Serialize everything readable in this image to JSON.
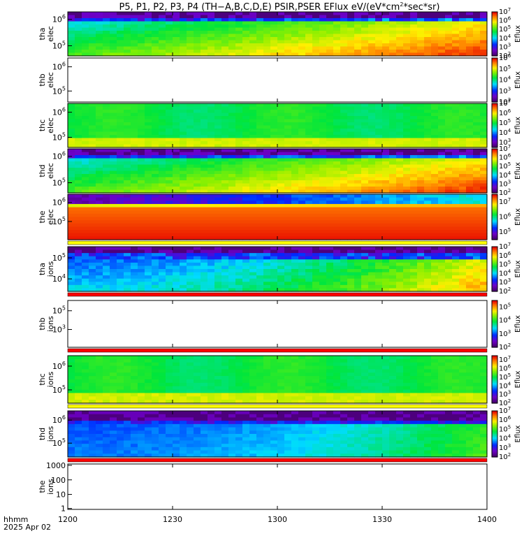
{
  "chart_data": {
    "type": "heatmap",
    "title": "P5, P1, P2, P3, P4 (TH−A,B,C,D,E) PSIR,PSER EFlux eV/(eV*cm",
    "title_sup": "2",
    "title_end": "*sec*sr)",
    "x_axis": {
      "ticks": [
        "1200",
        "1230",
        "1300",
        "1330",
        "1400"
      ],
      "ticks_minutes": [
        0,
        30,
        60,
        90,
        120
      ],
      "range_minutes": [
        0,
        120
      ],
      "label_line1": "hhmm",
      "label_line2": "2025 Apr 02"
    },
    "colorbar_label": "Eflux",
    "colors": {
      "red_flag": "#ff0000",
      "yellow_flag": "#ffff00",
      "empty": "#ffffff"
    },
    "panels": [
      {
        "id": "tha-elec",
        "ylabel": [
          "tha",
          "elec"
        ],
        "yticks": [
          {
            "base": "10",
            "exp": "6"
          },
          {
            "base": "10",
            "exp": "5"
          }
        ],
        "ytick_frac": [
          0.17,
          0.77
        ],
        "cb_ticks": [
          {
            "base": "10",
            "exp": "7"
          },
          {
            "base": "10",
            "exp": "6"
          },
          {
            "base": "10",
            "exp": "5"
          },
          {
            "base": "10",
            "exp": "4"
          },
          {
            "base": "10",
            "exp": "3"
          },
          {
            "base": "10",
            "exp": "2"
          }
        ],
        "cb_range": [
          2,
          7
        ],
        "pattern": "elec_grow",
        "level": 4.6,
        "bar": "none"
      },
      {
        "id": "thb-elec",
        "ylabel": [
          "thb",
          "elec"
        ],
        "yticks": [
          {
            "base": "10",
            "exp": "6"
          },
          {
            "base": "10",
            "exp": "5"
          }
        ],
        "ytick_frac": [
          0.2,
          0.75
        ],
        "cb_ticks": [
          {
            "base": "10",
            "exp": "6"
          },
          {
            "base": "10",
            "exp": "5"
          },
          {
            "base": "10",
            "exp": "4"
          },
          {
            "base": "10",
            "exp": "3"
          },
          {
            "base": "10",
            "exp": "2"
          }
        ],
        "cb_range": [
          2,
          6
        ],
        "pattern": "empty",
        "level": 0,
        "bar": "none"
      },
      {
        "id": "thc-elec",
        "ylabel": [
          "thc",
          "elec"
        ],
        "yticks": [
          {
            "base": "10",
            "exp": "6"
          },
          {
            "base": "10",
            "exp": "5"
          }
        ],
        "ytick_frac": [
          0.2,
          0.77
        ],
        "cb_ticks": [
          {
            "base": "10",
            "exp": "7"
          },
          {
            "base": "10",
            "exp": "6"
          },
          {
            "base": "10",
            "exp": "5"
          },
          {
            "base": "10",
            "exp": "4"
          },
          {
            "base": "10",
            "exp": "3"
          }
        ],
        "cb_range": [
          2.5,
          7
        ],
        "pattern": "flat_green",
        "level": 4.5,
        "bar": "none"
      },
      {
        "id": "thd-elec",
        "ylabel": [
          "thd",
          "elec"
        ],
        "yticks": [
          {
            "base": "10",
            "exp": "6"
          },
          {
            "base": "10",
            "exp": "5"
          }
        ],
        "ytick_frac": [
          0.17,
          0.77
        ],
        "cb_ticks": [
          {
            "base": "10",
            "exp": "7"
          },
          {
            "base": "10",
            "exp": "6"
          },
          {
            "base": "10",
            "exp": "5"
          },
          {
            "base": "10",
            "exp": "4"
          },
          {
            "base": "10",
            "exp": "3"
          },
          {
            "base": "10",
            "exp": "2"
          }
        ],
        "cb_range": [
          2,
          7
        ],
        "pattern": "elec_grow",
        "level": 4.4,
        "bar": "none"
      },
      {
        "id": "the-elec",
        "ylabel": [
          "the",
          "elec"
        ],
        "yticks": [
          {
            "base": "10",
            "exp": "6"
          },
          {
            "base": "10",
            "exp": "5"
          }
        ],
        "ytick_frac": [
          0.18,
          0.6
        ],
        "cb_ticks": [
          {
            "base": "10",
            "exp": "7"
          },
          {
            "base": "10",
            "exp": "6"
          },
          {
            "base": "10",
            "exp": "5"
          }
        ],
        "cb_range": [
          4.5,
          7.5
        ],
        "pattern": "red_hot",
        "level": 6.9,
        "bar": "yellow"
      },
      {
        "id": "tha-ions",
        "ylabel": [
          "tha",
          "ions"
        ],
        "yticks": [
          {
            "base": "10",
            "exp": "5"
          },
          {
            "base": "10",
            "exp": "4"
          }
        ],
        "ytick_frac": [
          0.25,
          0.72
        ],
        "cb_ticks": [
          {
            "base": "10",
            "exp": "7"
          },
          {
            "base": "10",
            "exp": "6"
          },
          {
            "base": "10",
            "exp": "5"
          },
          {
            "base": "10",
            "exp": "4"
          },
          {
            "base": "10",
            "exp": "3"
          },
          {
            "base": "10",
            "exp": "2"
          }
        ],
        "cb_range": [
          2,
          7
        ],
        "pattern": "ion_grow",
        "level": 4.0,
        "bar": "red"
      },
      {
        "id": "thb-ions",
        "ylabel": [
          "thb",
          "ions"
        ],
        "yticks": [
          {
            "base": "10",
            "exp": "5"
          },
          {
            "base": "10",
            "exp": "3"
          }
        ],
        "ytick_frac": [
          0.22,
          0.62
        ],
        "cb_ticks": [
          {
            "base": "10",
            "exp": "5"
          },
          {
            "base": "10",
            "exp": "4"
          },
          {
            "base": "10",
            "exp": "3"
          },
          {
            "base": "10",
            "exp": "2"
          }
        ],
        "cb_range": [
          2,
          5.5
        ],
        "pattern": "empty",
        "level": 0,
        "bar": "red"
      },
      {
        "id": "thc-ions",
        "ylabel": [
          "thc",
          "ions"
        ],
        "yticks": [
          {
            "base": "10",
            "exp": "6"
          },
          {
            "base": "10",
            "exp": "5"
          }
        ],
        "ytick_frac": [
          0.22,
          0.72
        ],
        "cb_ticks": [
          {
            "base": "10",
            "exp": "7"
          },
          {
            "base": "10",
            "exp": "6"
          },
          {
            "base": "10",
            "exp": "5"
          },
          {
            "base": "10",
            "exp": "4"
          },
          {
            "base": "10",
            "exp": "3"
          },
          {
            "base": "10",
            "exp": "2"
          }
        ],
        "cb_range": [
          2,
          7.5
        ],
        "pattern": "flat_green",
        "level": 4.6,
        "bar": "yellow"
      },
      {
        "id": "thd-ions",
        "ylabel": [
          "thd",
          "ions"
        ],
        "yticks": [
          {
            "base": "10",
            "exp": "6"
          },
          {
            "base": "10",
            "exp": "5"
          }
        ],
        "ytick_frac": [
          0.2,
          0.7
        ],
        "cb_ticks": [
          {
            "base": "10",
            "exp": "7"
          },
          {
            "base": "10",
            "exp": "6"
          },
          {
            "base": "10",
            "exp": "5"
          },
          {
            "base": "10",
            "exp": "4"
          },
          {
            "base": "10",
            "exp": "3"
          },
          {
            "base": "10",
            "exp": "2"
          }
        ],
        "cb_range": [
          2,
          7
        ],
        "pattern": "ion_blue",
        "level": 3.4,
        "bar": "red"
      },
      {
        "id": "the-ions",
        "ylabel": [
          "the",
          "ions"
        ],
        "yticks_plain": [
          "1000",
          "100",
          "10",
          "1"
        ],
        "ytick_frac": [
          0.03,
          0.35,
          0.67,
          0.98
        ],
        "cb_ticks": [],
        "pattern": "empty",
        "level": 0,
        "bar": "none"
      }
    ]
  }
}
